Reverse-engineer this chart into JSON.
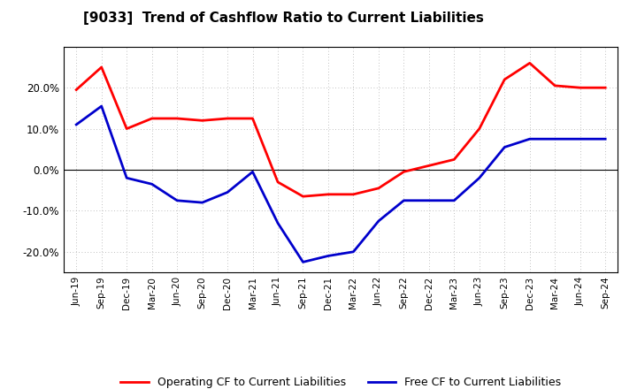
{
  "title": "[9033]  Trend of Cashflow Ratio to Current Liabilities",
  "x_labels": [
    "Jun-19",
    "Sep-19",
    "Dec-19",
    "Mar-20",
    "Jun-20",
    "Sep-20",
    "Dec-20",
    "Mar-21",
    "Jun-21",
    "Sep-21",
    "Dec-21",
    "Mar-22",
    "Jun-22",
    "Sep-22",
    "Dec-22",
    "Mar-23",
    "Jun-23",
    "Sep-23",
    "Dec-23",
    "Mar-24",
    "Jun-24",
    "Sep-24"
  ],
  "operating_cf": [
    19.5,
    25.0,
    10.0,
    12.5,
    12.5,
    12.0,
    12.5,
    12.5,
    -3.0,
    -6.5,
    -6.0,
    -6.0,
    -4.5,
    -0.5,
    1.0,
    2.5,
    10.0,
    22.0,
    26.0,
    20.5,
    20.0,
    20.0
  ],
  "free_cf": [
    11.0,
    15.5,
    -2.0,
    -3.5,
    -7.5,
    -8.0,
    -5.5,
    -0.5,
    -13.0,
    -22.5,
    -21.0,
    -20.0,
    -12.5,
    -7.5,
    -7.5,
    -7.5,
    -2.0,
    5.5,
    7.5,
    7.5,
    7.5,
    7.5
  ],
  "ylim": [
    -25,
    30
  ],
  "yticks": [
    -20,
    -10,
    0,
    10,
    20
  ],
  "operating_color": "#FF0000",
  "free_color": "#0000CC",
  "background_color": "#FFFFFF",
  "grid_color": "#AAAAAA",
  "legend_operating": "Operating CF to Current Liabilities",
  "legend_free": "Free CF to Current Liabilities",
  "title_fontsize": 11,
  "tick_fontsize": 7.5,
  "ytick_fontsize": 8.5,
  "legend_fontsize": 9,
  "linewidth": 2.0
}
